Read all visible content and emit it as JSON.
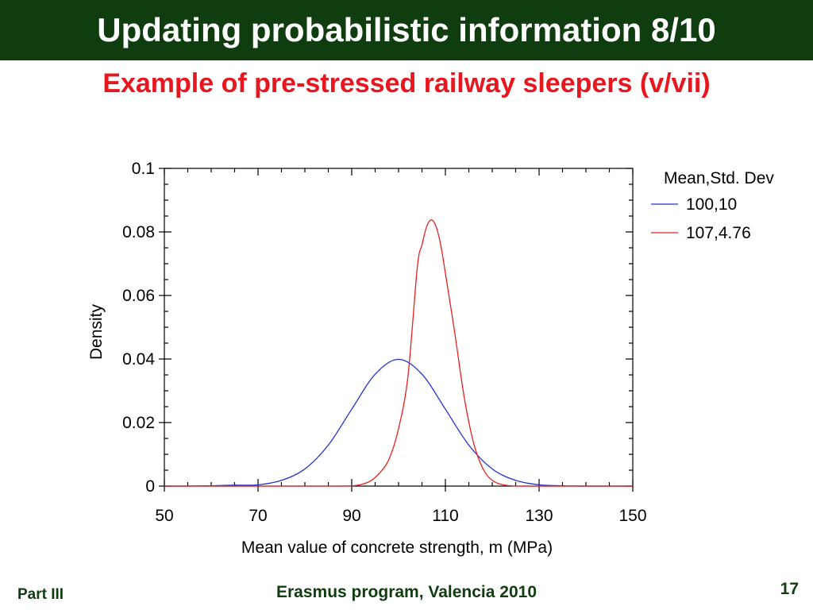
{
  "slide": {
    "title": "Updating probabilistic information 8/10",
    "subtitle": "Example of pre-stressed railway sleepers (v/vii)",
    "footer_left": "Part III",
    "footer_center": "Erasmus program, Valencia 2010",
    "page_number": "17"
  },
  "chart_data": {
    "type": "line",
    "xlabel": "Mean value of concrete strength, m (MPa)",
    "ylabel": "Density",
    "xlim": [
      50,
      150
    ],
    "ylim": [
      0,
      0.1
    ],
    "xticks": [
      50,
      70,
      90,
      110,
      130,
      150
    ],
    "xtick_labels": [
      "50",
      "70",
      "90",
      "110",
      "130",
      "150"
    ],
    "yticks": [
      0,
      0.02,
      0.04,
      0.06,
      0.08,
      0.1
    ],
    "ytick_labels": [
      "0",
      "0.02",
      "0.04",
      "0.06",
      "0.08",
      "0.1"
    ],
    "legend_title": "Mean,Std. Dev",
    "legend_placement": "outside-right",
    "grid": false,
    "series": [
      {
        "name": "100,10",
        "color": "#2233cc",
        "x": [
          50,
          55,
          60,
          65,
          70,
          75,
          80,
          85,
          90,
          95,
          100,
          105,
          110,
          115,
          120,
          125,
          130,
          135,
          140,
          145,
          150
        ],
        "y": [
          0.0,
          0.0,
          0.0001,
          0.0003,
          0.0004,
          0.0018,
          0.0054,
          0.0129,
          0.0242,
          0.0352,
          0.0399,
          0.0352,
          0.0242,
          0.0129,
          0.0054,
          0.0018,
          0.0004,
          0.0001,
          0.0,
          0.0,
          0.0
        ]
      },
      {
        "name": "107,4.76",
        "color": "#e82020",
        "x": [
          50,
          85,
          90,
          92,
          94,
          96,
          98,
          100,
          102,
          104,
          105,
          106,
          107,
          108,
          109,
          110,
          112,
          114,
          116,
          118,
          120,
          122,
          124,
          126,
          130,
          150
        ],
        "y": [
          0.0,
          0.0,
          0.0001,
          0.0005,
          0.0016,
          0.0042,
          0.0086,
          0.0181,
          0.0345,
          0.0688,
          0.0759,
          0.0817,
          0.0838,
          0.0817,
          0.0759,
          0.067,
          0.0482,
          0.0281,
          0.0137,
          0.0055,
          0.0018,
          0.0005,
          0.0001,
          0.0,
          0.0,
          0.0
        ]
      }
    ]
  }
}
